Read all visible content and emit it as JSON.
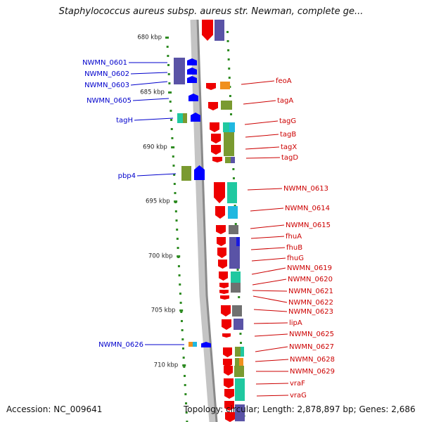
{
  "title": "Staphylococcus aureus subsp. aureus str. Newman, complete ge...",
  "footer": {
    "accession": "Accession: NC_009641",
    "summary": "Topology: circular; Length: 2,878,897 bp; Genes: 2,686"
  },
  "colors": {
    "backbone": "#8a8a8a",
    "ruler_dots": "#2e8b22",
    "left_label": "#0000cc",
    "right_label": "#cc0000",
    "forward_gene": "#0000ff",
    "reverse_gene": "#ee0000",
    "category_purple": "#5a53a6",
    "category_olive": "#7a9a30",
    "category_teal": "#20c8a0",
    "category_cyan": "#20b8e0",
    "category_orange": "#f0901e",
    "category_gray": "#707070"
  },
  "ruler": [
    {
      "label": "680 kbp"
    },
    {
      "label": "685 kbp"
    },
    {
      "label": "690 kbp"
    },
    {
      "label": "695 kbp"
    },
    {
      "label": "700 kbp"
    },
    {
      "label": "705 kbp"
    },
    {
      "label": "710 kbp"
    }
  ],
  "left_genes": [
    {
      "label": "NWMN_0601"
    },
    {
      "label": "NWMN_0602"
    },
    {
      "label": "NWMN_0603"
    },
    {
      "label": "NWMN_0605"
    },
    {
      "label": "tagH"
    },
    {
      "label": "pbp4"
    },
    {
      "label": "NWMN_0626"
    }
  ],
  "right_genes": [
    {
      "label": "feoA"
    },
    {
      "label": "tagA"
    },
    {
      "label": "tagG"
    },
    {
      "label": "tagB"
    },
    {
      "label": "tagX"
    },
    {
      "label": "tagD"
    },
    {
      "label": "NWMN_0613"
    },
    {
      "label": "NWMN_0614"
    },
    {
      "label": "NWMN_0615"
    },
    {
      "label": "fhuA"
    },
    {
      "label": "fhuB"
    },
    {
      "label": "fhuG"
    },
    {
      "label": "NWMN_0619"
    },
    {
      "label": "NWMN_0620"
    },
    {
      "label": "NWMN_0621"
    },
    {
      "label": "NWMN_0622"
    },
    {
      "label": "NWMN_0623"
    },
    {
      "label": "lipA"
    },
    {
      "label": "NWMN_0625"
    },
    {
      "label": "NWMN_0627"
    },
    {
      "label": "NWMN_0628"
    },
    {
      "label": "NWMN_0629"
    },
    {
      "label": "vraF"
    },
    {
      "label": "vraG"
    }
  ]
}
